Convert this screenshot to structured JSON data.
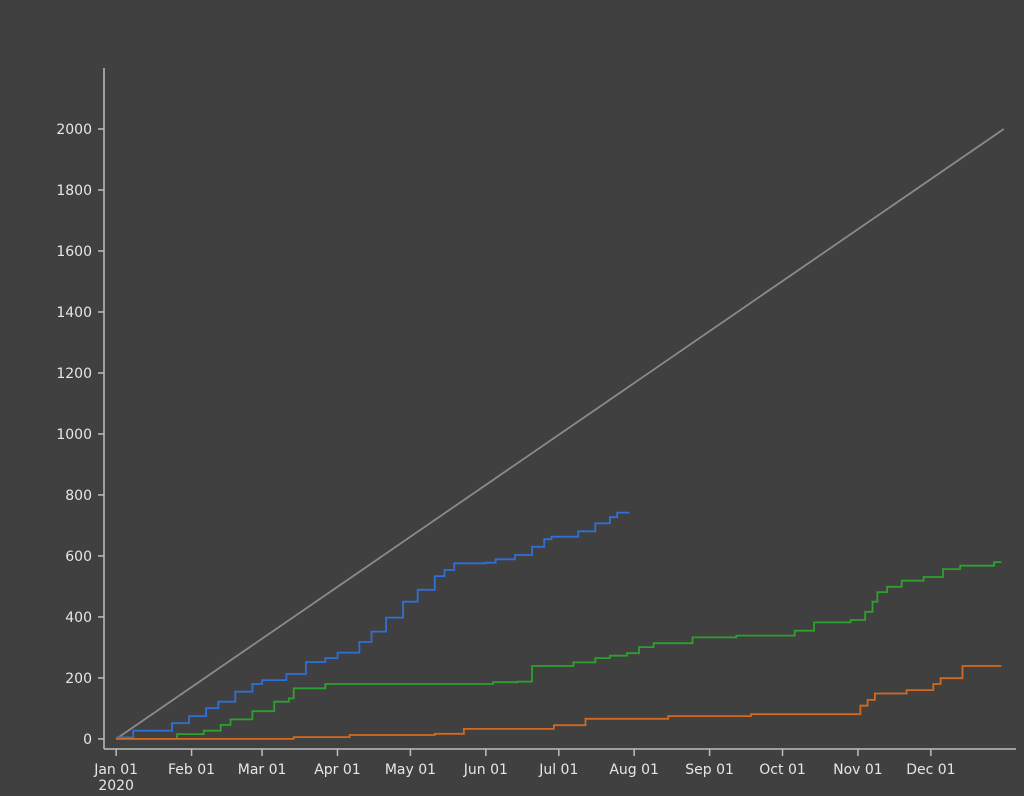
{
  "chart_data": {
    "type": "line",
    "title": "",
    "xlabel": "",
    "ylabel": "",
    "xlim": [
      "2019-12-27",
      "2021-01-05"
    ],
    "ylim": [
      -33,
      2200
    ],
    "grid": false,
    "background": "#404040",
    "x_ticks": [
      {
        "date": "2020-01-01",
        "label": "Jan 01",
        "sub": "2020"
      },
      {
        "date": "2020-02-01",
        "label": "Feb 01"
      },
      {
        "date": "2020-03-01",
        "label": "Mar 01"
      },
      {
        "date": "2020-04-01",
        "label": "Apr 01"
      },
      {
        "date": "2020-05-01",
        "label": "May 01"
      },
      {
        "date": "2020-06-01",
        "label": "Jun 01"
      },
      {
        "date": "2020-07-01",
        "label": "Jul 01"
      },
      {
        "date": "2020-08-01",
        "label": "Aug 01"
      },
      {
        "date": "2020-09-01",
        "label": "Sep 01"
      },
      {
        "date": "2020-10-01",
        "label": "Oct 01"
      },
      {
        "date": "2020-11-01",
        "label": "Nov 01"
      },
      {
        "date": "2020-12-01",
        "label": "Dec 01"
      }
    ],
    "y_ticks": [
      0,
      200,
      400,
      600,
      800,
      1000,
      1200,
      1400,
      1600,
      1800,
      2000
    ],
    "series": [
      {
        "color": "#8a8a8a",
        "step": false,
        "points": [
          [
            "2020-01-01",
            0
          ],
          [
            "2020-12-31",
            2000
          ]
        ]
      },
      {
        "color": "#2f6fd6",
        "step": true,
        "points": [
          [
            "2020-01-01",
            5
          ],
          [
            "2020-01-08",
            27
          ],
          [
            "2020-01-24",
            52
          ],
          [
            "2020-01-31",
            75
          ],
          [
            "2020-02-07",
            101
          ],
          [
            "2020-02-12",
            122
          ],
          [
            "2020-02-19",
            155
          ],
          [
            "2020-02-26",
            180
          ],
          [
            "2020-03-01",
            193
          ],
          [
            "2020-03-11",
            213
          ],
          [
            "2020-03-19",
            252
          ],
          [
            "2020-03-27",
            265
          ],
          [
            "2020-04-01",
            283
          ],
          [
            "2020-04-10",
            318
          ],
          [
            "2020-04-15",
            352
          ],
          [
            "2020-04-21",
            398
          ],
          [
            "2020-04-28",
            450
          ],
          [
            "2020-05-04",
            489
          ],
          [
            "2020-05-11",
            534
          ],
          [
            "2020-05-15",
            554
          ],
          [
            "2020-05-19",
            576
          ],
          [
            "2020-06-01",
            578
          ],
          [
            "2020-06-05",
            589
          ],
          [
            "2020-06-13",
            603
          ],
          [
            "2020-06-20",
            630
          ],
          [
            "2020-06-25",
            655
          ],
          [
            "2020-06-28",
            663
          ],
          [
            "2020-07-09",
            681
          ],
          [
            "2020-07-16",
            707
          ],
          [
            "2020-07-22",
            727
          ],
          [
            "2020-07-25",
            742
          ],
          [
            "2020-07-30",
            742
          ]
        ]
      },
      {
        "color": "#2ea02e",
        "step": true,
        "points": [
          [
            "2020-01-01",
            0
          ],
          [
            "2020-01-26",
            16
          ],
          [
            "2020-02-06",
            27
          ],
          [
            "2020-02-13",
            46
          ],
          [
            "2020-02-17",
            64
          ],
          [
            "2020-02-26",
            91
          ],
          [
            "2020-03-06",
            122
          ],
          [
            "2020-03-12",
            133
          ],
          [
            "2020-03-14",
            166
          ],
          [
            "2020-03-27",
            180
          ],
          [
            "2020-06-04",
            186
          ],
          [
            "2020-06-14",
            188
          ],
          [
            "2020-06-20",
            239
          ],
          [
            "2020-07-07",
            251
          ],
          [
            "2020-07-16",
            265
          ],
          [
            "2020-07-22",
            273
          ],
          [
            "2020-07-29",
            281
          ],
          [
            "2020-08-03",
            301
          ],
          [
            "2020-08-09",
            314
          ],
          [
            "2020-08-25",
            333
          ],
          [
            "2020-09-12",
            339
          ],
          [
            "2020-10-06",
            355
          ],
          [
            "2020-10-14",
            382
          ],
          [
            "2020-10-29",
            390
          ],
          [
            "2020-11-04",
            417
          ],
          [
            "2020-11-07",
            450
          ],
          [
            "2020-11-09",
            481
          ],
          [
            "2020-11-13",
            499
          ],
          [
            "2020-11-19",
            519
          ],
          [
            "2020-11-28",
            531
          ],
          [
            "2020-12-06",
            557
          ],
          [
            "2020-12-13",
            568
          ],
          [
            "2020-12-27",
            580
          ],
          [
            "2020-12-30",
            580
          ]
        ]
      },
      {
        "color": "#d2691e",
        "step": true,
        "points": [
          [
            "2020-01-01",
            0
          ],
          [
            "2020-03-14",
            6
          ],
          [
            "2020-04-06",
            13
          ],
          [
            "2020-05-11",
            17
          ],
          [
            "2020-05-23",
            33
          ],
          [
            "2020-06-29",
            45
          ],
          [
            "2020-07-12",
            66
          ],
          [
            "2020-08-15",
            75
          ],
          [
            "2020-09-18",
            81
          ],
          [
            "2020-11-02",
            109
          ],
          [
            "2020-11-05",
            128
          ],
          [
            "2020-11-08",
            149
          ],
          [
            "2020-11-21",
            160
          ],
          [
            "2020-12-02",
            180
          ],
          [
            "2020-12-05",
            199
          ],
          [
            "2020-12-14",
            239
          ],
          [
            "2020-12-30",
            239
          ]
        ]
      }
    ]
  }
}
